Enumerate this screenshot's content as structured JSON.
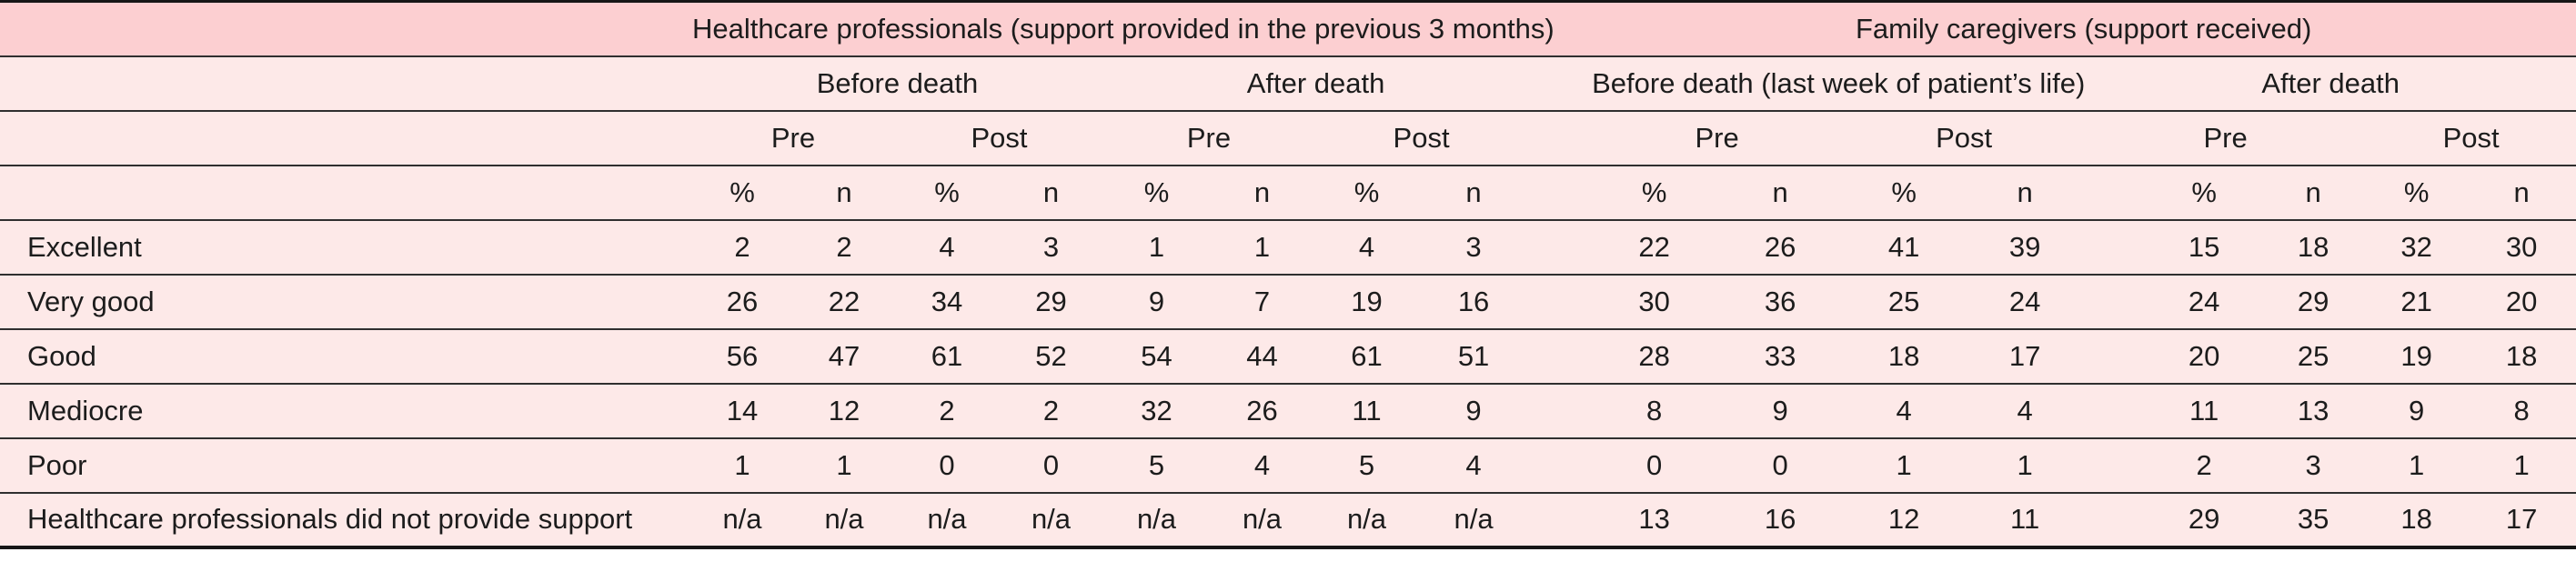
{
  "colors": {
    "header_band_bg": "#fccfd1",
    "row_bg": "#fde9e8",
    "border_heavy": "#161616",
    "border_light": "#2f2f2f",
    "text": "#1c1c1c",
    "page_bg": "#ffffff"
  },
  "table": {
    "group_headers": [
      "Healthcare professionals (support provided in the previous 3 months)",
      "Family caregivers (support received)"
    ],
    "period_headers": [
      "Before death",
      "After death",
      "Before death (last week of patient’s life)",
      "After death"
    ],
    "phase_headers": [
      "Pre",
      "Post",
      "Pre",
      "Post",
      "Pre",
      "Post",
      "Pre",
      "Post"
    ],
    "measure_headers": [
      "%",
      "n",
      "%",
      "n",
      "%",
      "n",
      "%",
      "n",
      "%",
      "n",
      "%",
      "n",
      "%",
      "n",
      "%",
      "n"
    ],
    "rows": [
      {
        "label": "Excellent",
        "values": [
          "2",
          "2",
          "4",
          "3",
          "1",
          "1",
          "4",
          "3",
          "22",
          "26",
          "41",
          "39",
          "15",
          "18",
          "32",
          "30"
        ]
      },
      {
        "label": "Very good",
        "values": [
          "26",
          "22",
          "34",
          "29",
          "9",
          "7",
          "19",
          "16",
          "30",
          "36",
          "25",
          "24",
          "24",
          "29",
          "21",
          "20"
        ]
      },
      {
        "label": "Good",
        "values": [
          "56",
          "47",
          "61",
          "52",
          "54",
          "44",
          "61",
          "51",
          "28",
          "33",
          "18",
          "17",
          "20",
          "25",
          "19",
          "18"
        ]
      },
      {
        "label": "Mediocre",
        "values": [
          "14",
          "12",
          "2",
          "2",
          "32",
          "26",
          "11",
          "9",
          "8",
          "9",
          "4",
          "4",
          "11",
          "13",
          "9",
          "8"
        ]
      },
      {
        "label": "Poor",
        "values": [
          "1",
          "1",
          "0",
          "0",
          "5",
          "4",
          "5",
          "4",
          "0",
          "0",
          "1",
          "1",
          "2",
          "3",
          "1",
          "1"
        ]
      },
      {
        "label": "Healthcare professionals did not provide support",
        "values": [
          "n/a",
          "n/a",
          "n/a",
          "n/a",
          "n/a",
          "n/a",
          "n/a",
          "n/a",
          "13",
          "16",
          "12",
          "11",
          "29",
          "35",
          "18",
          "17"
        ]
      }
    ]
  }
}
